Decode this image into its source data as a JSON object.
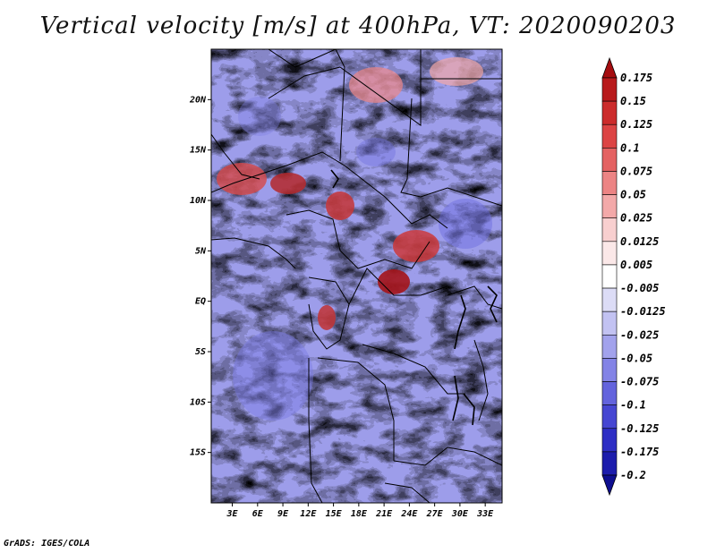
{
  "title": "Vertical velocity [m/s] at 400hPa, VT: 2020090203",
  "credit": "GrADS: IGES/COLA",
  "map": {
    "lat_labels": [
      "20N",
      "15N",
      "10N",
      "5N",
      "EQ",
      "5S",
      "10S",
      "15S"
    ],
    "lat_values": [
      20,
      15,
      10,
      5,
      0,
      -5,
      -10,
      -15
    ],
    "lon_labels": [
      "3E",
      "6E",
      "9E",
      "12E",
      "15E",
      "18E",
      "21E",
      "24E",
      "27E",
      "30E",
      "33E"
    ],
    "lon_values": [
      3,
      6,
      9,
      12,
      15,
      18,
      21,
      24,
      27,
      30,
      33
    ],
    "lat_range": [
      -20,
      25
    ],
    "lon_range": [
      0.5,
      35
    ]
  },
  "colorbar": {
    "labels": [
      "0.175",
      "0.15",
      "0.125",
      "0.1",
      "0.075",
      "0.05",
      "0.025",
      "0.0125",
      "0.005",
      "-0.005",
      "-0.0125",
      "-0.025",
      "-0.05",
      "-0.075",
      "-0.1",
      "-0.125",
      "-0.175",
      "-0.2"
    ],
    "colors": [
      "#a50d10",
      "#b81a1c",
      "#cc2c2c",
      "#dc4444",
      "#e46262",
      "#ec8484",
      "#f3a9a9",
      "#f8cfcf",
      "#fbe8e8",
      "#ffffff",
      "#dcdcf6",
      "#c2c2f2",
      "#a2a2ec",
      "#8383e6",
      "#6363dd",
      "#4646d2",
      "#2e2ec4",
      "#1c1cac",
      "#0e0e90"
    ]
  }
}
